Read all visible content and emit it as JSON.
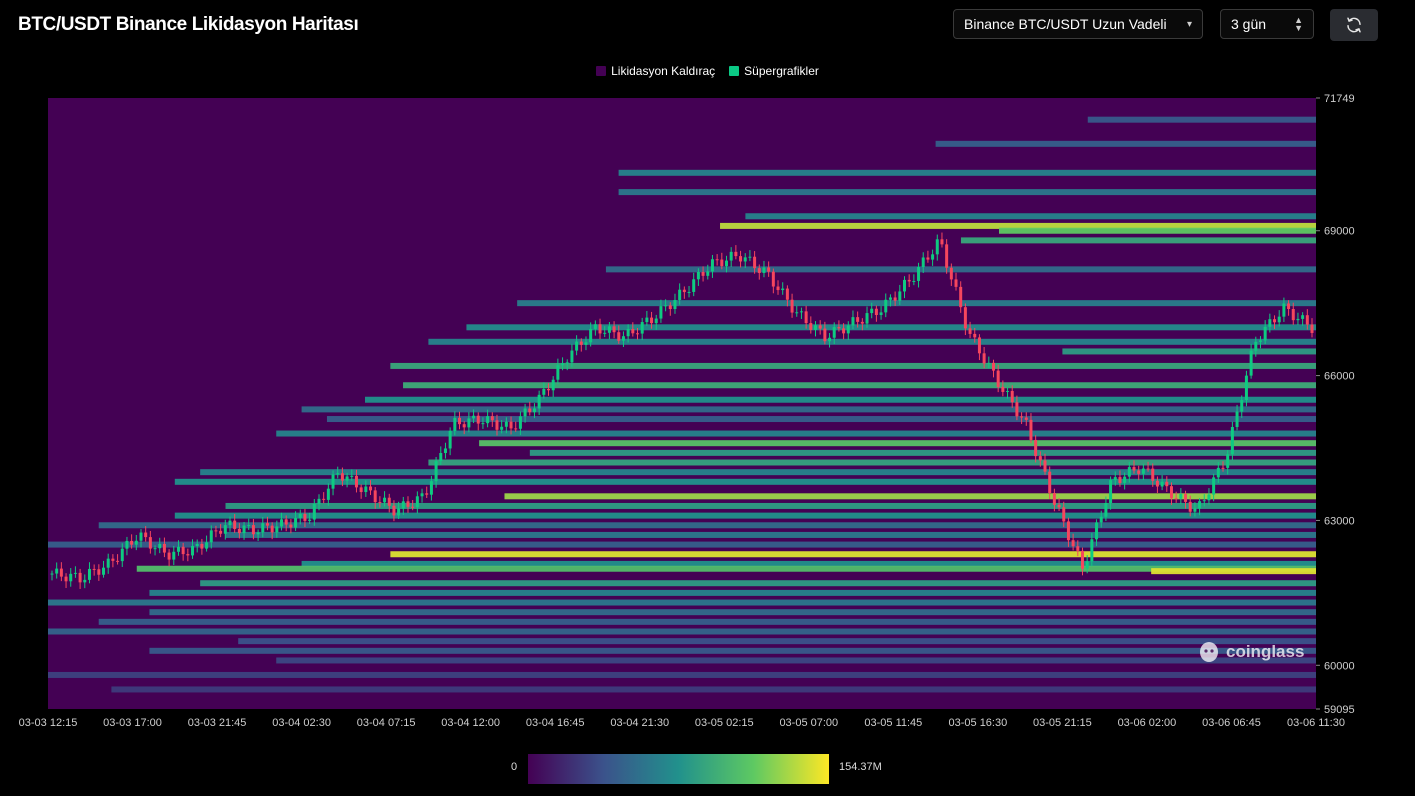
{
  "header": {
    "title": "BTC/USDT Binance Likidasyon Haritası",
    "exchange_select": "Binance BTC/USDT Uzun Vadeli",
    "period_select": "3 gün",
    "refresh_icon": "refresh-icon"
  },
  "watermark": "coinglass",
  "colorbar": {
    "min_label": "0",
    "max_label": "154.37M",
    "colors": [
      "#440154",
      "#3b528b",
      "#21918c",
      "#5ec962",
      "#fde725"
    ]
  },
  "chart_data": {
    "type": "heatmap",
    "title": "BTC/USDT Binance Likidasyon Haritası",
    "legend": [
      {
        "name": "Likidasyon Kaldıraç",
        "color": "#440154"
      },
      {
        "name": "Süpergrafikler",
        "color": "#0bc985"
      }
    ],
    "legend_position": "top-center",
    "x_ticks": [
      "03-03 12:15",
      "03-03 17:00",
      "03-03 21:45",
      "03-04 02:30",
      "03-04 07:15",
      "03-04 12:00",
      "03-04 16:45",
      "03-04 21:30",
      "03-05 02:15",
      "03-05 07:00",
      "03-05 11:45",
      "03-05 16:30",
      "03-05 21:15",
      "03-06 02:00",
      "03-06 06:45",
      "03-06 11:30"
    ],
    "y_ticks": [
      71749,
      69000,
      66000,
      63000,
      60000,
      59095
    ],
    "ylim": [
      59095,
      71749
    ],
    "price_path": [
      61900,
      61800,
      62100,
      62700,
      62300,
      62400,
      62900,
      62800,
      62900,
      63100,
      64000,
      63600,
      63200,
      63500,
      65000,
      65100,
      64900,
      65500,
      66400,
      67000,
      66800,
      67200,
      67700,
      68300,
      68500,
      68100,
      67300,
      66800,
      67100,
      67400,
      68000,
      68800,
      66900,
      65900,
      65000,
      63400,
      62000,
      63800,
      64100,
      63600,
      63200,
      64300,
      66700,
      67400,
      67000
    ],
    "bands": [
      {
        "price": 69300,
        "start": 0.55,
        "intensity": 0.45
      },
      {
        "price": 69100,
        "start": 0.53,
        "intensity": 0.9
      },
      {
        "price": 69000,
        "start": 0.75,
        "intensity": 0.75
      },
      {
        "price": 69800,
        "start": 0.45,
        "intensity": 0.4
      },
      {
        "price": 70200,
        "start": 0.45,
        "intensity": 0.45
      },
      {
        "price": 70800,
        "start": 0.7,
        "intensity": 0.3
      },
      {
        "price": 71300,
        "start": 0.82,
        "intensity": 0.28
      },
      {
        "price": 68800,
        "start": 0.72,
        "intensity": 0.6
      },
      {
        "price": 68200,
        "start": 0.44,
        "intensity": 0.35
      },
      {
        "price": 67500,
        "start": 0.37,
        "intensity": 0.42
      },
      {
        "price": 67000,
        "start": 0.33,
        "intensity": 0.48
      },
      {
        "price": 66700,
        "start": 0.3,
        "intensity": 0.45
      },
      {
        "price": 66500,
        "start": 0.8,
        "intensity": 0.55
      },
      {
        "price": 66200,
        "start": 0.27,
        "intensity": 0.6
      },
      {
        "price": 65800,
        "start": 0.28,
        "intensity": 0.62
      },
      {
        "price": 65500,
        "start": 0.25,
        "intensity": 0.5
      },
      {
        "price": 65300,
        "start": 0.2,
        "intensity": 0.35
      },
      {
        "price": 65100,
        "start": 0.22,
        "intensity": 0.3
      },
      {
        "price": 64800,
        "start": 0.18,
        "intensity": 0.45
      },
      {
        "price": 64600,
        "start": 0.34,
        "intensity": 0.72
      },
      {
        "price": 64400,
        "start": 0.38,
        "intensity": 0.55
      },
      {
        "price": 64200,
        "start": 0.3,
        "intensity": 0.58
      },
      {
        "price": 64000,
        "start": 0.12,
        "intensity": 0.45
      },
      {
        "price": 63800,
        "start": 0.1,
        "intensity": 0.5
      },
      {
        "price": 63500,
        "start": 0.36,
        "intensity": 0.85
      },
      {
        "price": 63300,
        "start": 0.14,
        "intensity": 0.55
      },
      {
        "price": 63100,
        "start": 0.1,
        "intensity": 0.5
      },
      {
        "price": 62900,
        "start": 0.04,
        "intensity": 0.35
      },
      {
        "price": 62700,
        "start": 0.14,
        "intensity": 0.4
      },
      {
        "price": 62500,
        "start": 0.0,
        "intensity": 0.3
      },
      {
        "price": 62300,
        "start": 0.27,
        "intensity": 0.95
      },
      {
        "price": 62100,
        "start": 0.2,
        "intensity": 0.5
      },
      {
        "price": 62000,
        "start": 0.07,
        "intensity": 0.7
      },
      {
        "price": 61950,
        "start": 0.87,
        "intensity": 0.95
      },
      {
        "price": 61700,
        "start": 0.12,
        "intensity": 0.55
      },
      {
        "price": 61500,
        "start": 0.08,
        "intensity": 0.45
      },
      {
        "price": 61300,
        "start": 0.0,
        "intensity": 0.4
      },
      {
        "price": 61100,
        "start": 0.08,
        "intensity": 0.35
      },
      {
        "price": 60900,
        "start": 0.04,
        "intensity": 0.3
      },
      {
        "price": 60700,
        "start": 0.0,
        "intensity": 0.32
      },
      {
        "price": 60500,
        "start": 0.15,
        "intensity": 0.25
      },
      {
        "price": 60300,
        "start": 0.08,
        "intensity": 0.28
      },
      {
        "price": 60100,
        "start": 0.18,
        "intensity": 0.22
      },
      {
        "price": 59800,
        "start": 0.0,
        "intensity": 0.2
      },
      {
        "price": 59500,
        "start": 0.05,
        "intensity": 0.18
      }
    ]
  }
}
